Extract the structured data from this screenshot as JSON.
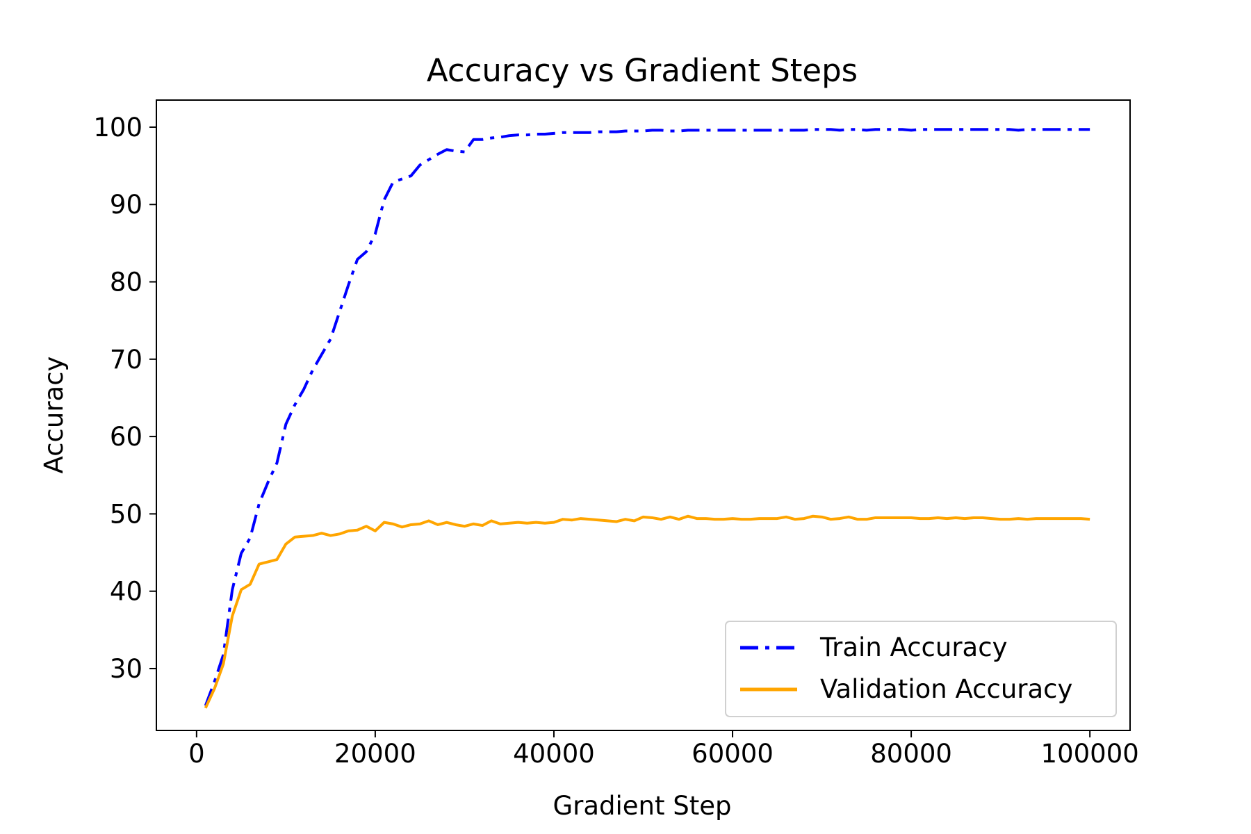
{
  "chart_data": {
    "type": "line",
    "title": "Accuracy vs Gradient Steps",
    "xlabel": "Gradient Step",
    "ylabel": "Accuracy",
    "xlim": [
      -4500,
      104500
    ],
    "ylim": [
      22,
      103.5
    ],
    "xticks": [
      0,
      20000,
      40000,
      60000,
      80000,
      100000
    ],
    "xtick_labels": [
      "0",
      "20000",
      "40000",
      "60000",
      "80000",
      "100000"
    ],
    "yticks": [
      30,
      40,
      50,
      60,
      70,
      80,
      90,
      100
    ],
    "ytick_labels": [
      "30",
      "40",
      "50",
      "60",
      "70",
      "80",
      "90",
      "100"
    ],
    "grid": false,
    "legend_position": "lower-right",
    "x": [
      1000,
      2000,
      3000,
      4000,
      5000,
      6000,
      7000,
      8000,
      9000,
      10000,
      11000,
      12000,
      13000,
      14000,
      15000,
      16000,
      17000,
      18000,
      19000,
      20000,
      21000,
      22000,
      23000,
      24000,
      25000,
      26000,
      27000,
      28000,
      29000,
      30000,
      31000,
      32000,
      33000,
      34000,
      35000,
      36000,
      37000,
      38000,
      39000,
      40000,
      41000,
      42000,
      43000,
      44000,
      45000,
      46000,
      47000,
      48000,
      49000,
      50000,
      51000,
      52000,
      53000,
      54000,
      55000,
      56000,
      57000,
      58000,
      59000,
      60000,
      61000,
      62000,
      63000,
      64000,
      65000,
      66000,
      67000,
      68000,
      69000,
      70000,
      71000,
      72000,
      73000,
      74000,
      75000,
      76000,
      77000,
      78000,
      79000,
      80000,
      81000,
      82000,
      83000,
      84000,
      85000,
      86000,
      87000,
      88000,
      89000,
      90000,
      91000,
      92000,
      93000,
      94000,
      95000,
      96000,
      97000,
      98000,
      99000,
      100000
    ],
    "series": [
      {
        "name": "Train Accuracy",
        "color": "#0000ff",
        "style": "dashdot",
        "values": [
          25.2,
          28.3,
          31.8,
          40.2,
          44.9,
          46.9,
          51.3,
          54.1,
          56.6,
          61.6,
          64.1,
          66.1,
          68.6,
          70.6,
          72.6,
          76.1,
          79.6,
          82.9,
          83.9,
          86.2,
          90.6,
          92.9,
          93.3,
          93.7,
          95.1,
          95.8,
          96.5,
          97.1,
          96.9,
          96.8,
          98.4,
          98.4,
          98.6,
          98.7,
          98.9,
          99.0,
          99.0,
          99.1,
          99.1,
          99.2,
          99.3,
          99.3,
          99.3,
          99.3,
          99.4,
          99.4,
          99.4,
          99.5,
          99.5,
          99.5,
          99.6,
          99.6,
          99.5,
          99.5,
          99.6,
          99.6,
          99.6,
          99.6,
          99.6,
          99.6,
          99.6,
          99.6,
          99.6,
          99.6,
          99.6,
          99.6,
          99.6,
          99.6,
          99.7,
          99.7,
          99.7,
          99.6,
          99.7,
          99.7,
          99.6,
          99.7,
          99.7,
          99.7,
          99.7,
          99.6,
          99.7,
          99.7,
          99.7,
          99.7,
          99.7,
          99.7,
          99.7,
          99.7,
          99.7,
          99.7,
          99.7,
          99.6,
          99.7,
          99.7,
          99.7,
          99.7,
          99.7,
          99.7,
          99.7,
          99.7
        ]
      },
      {
        "name": "Validation Accuracy",
        "color": "#ffa500",
        "style": "solid",
        "values": [
          24.9,
          27.4,
          30.6,
          36.8,
          40.2,
          40.9,
          43.5,
          43.8,
          44.1,
          46.1,
          47.0,
          47.1,
          47.2,
          47.5,
          47.2,
          47.4,
          47.8,
          47.9,
          48.4,
          47.8,
          48.9,
          48.7,
          48.3,
          48.6,
          48.7,
          49.1,
          48.6,
          48.9,
          48.6,
          48.4,
          48.7,
          48.5,
          49.1,
          48.7,
          48.8,
          48.9,
          48.8,
          48.9,
          48.8,
          48.9,
          49.3,
          49.2,
          49.4,
          49.3,
          49.2,
          49.1,
          49.0,
          49.3,
          49.1,
          49.6,
          49.5,
          49.3,
          49.6,
          49.3,
          49.7,
          49.4,
          49.4,
          49.3,
          49.3,
          49.4,
          49.3,
          49.3,
          49.4,
          49.4,
          49.4,
          49.6,
          49.3,
          49.4,
          49.7,
          49.6,
          49.3,
          49.4,
          49.6,
          49.3,
          49.3,
          49.5,
          49.5,
          49.5,
          49.5,
          49.5,
          49.4,
          49.4,
          49.5,
          49.4,
          49.5,
          49.4,
          49.5,
          49.5,
          49.4,
          49.3,
          49.3,
          49.4,
          49.3,
          49.4,
          49.4,
          49.4,
          49.4,
          49.4,
          49.4,
          49.3
        ]
      }
    ]
  }
}
